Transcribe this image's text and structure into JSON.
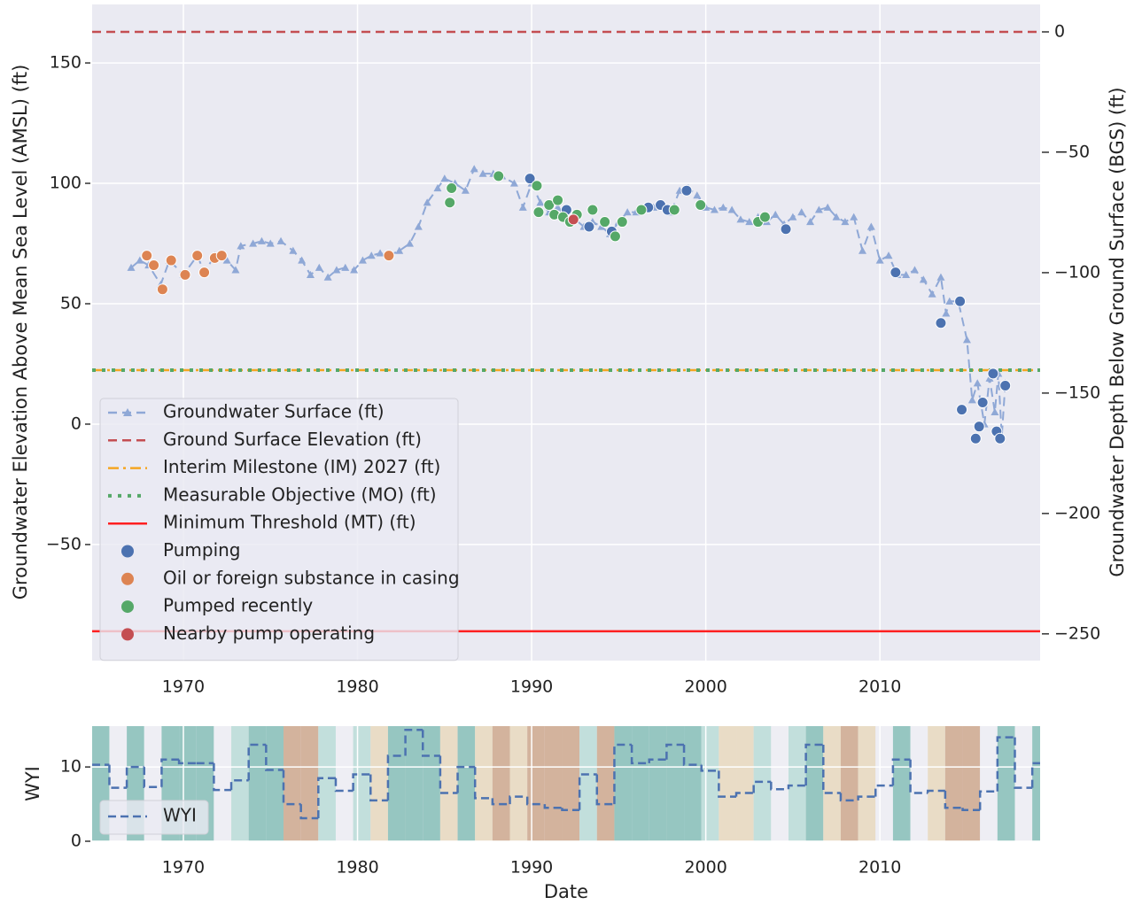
{
  "chart_data": [
    {
      "type": "line",
      "ylabel": "Groundwater Elevation Above Mean Sea Level (AMSL) (ft)",
      "y2label": "Groundwater Depth Below Ground Surface (BGS) (ft)",
      "xlim": [
        1964.76,
        2019.2
      ],
      "xticks": [
        1970,
        1980,
        1990,
        2000,
        2010
      ],
      "ylim": [
        -98.2,
        174.3
      ],
      "yticks": [
        {
          "value": -50,
          "label": "−50"
        },
        0,
        50,
        100,
        150
      ],
      "y2lim": [
        -261.1,
        11.4
      ],
      "y2ticks": [
        {
          "value": -250,
          "label": "−250"
        },
        {
          "value": -200,
          "label": "−200"
        },
        {
          "value": -150,
          "label": "−150"
        },
        {
          "value": -100,
          "label": "−100"
        },
        {
          "value": -50,
          "label": "−50"
        },
        0
      ],
      "grid": true,
      "background": "#eaeaf2",
      "legend": "lower left",
      "series": [
        {
          "type": "line",
          "name": "Groundwater Surface (ft)",
          "color": "#8fa8d6",
          "linestyle": "dashed",
          "marker": "triangle",
          "x": [
            1967.0,
            1967.5,
            1968,
            1968.7,
            1969.2,
            1970,
            1970.8,
            1971.2,
            1971.8,
            1972.5,
            1973,
            1973.3,
            1974,
            1974.5,
            1975,
            1975.6,
            1976.3,
            1976.8,
            1977.3,
            1977.8,
            1978.3,
            1978.8,
            1979.3,
            1979.8,
            1980.3,
            1980.8,
            1981.3,
            1981.8,
            1982.4,
            1983,
            1983.5,
            1984,
            1984.6,
            1985,
            1985.6,
            1986.2,
            1986.7,
            1987.2,
            1987.8,
            1988.3,
            1989,
            1989.5,
            1990,
            1990.5,
            1991,
            1991.5,
            1992,
            1992.5,
            1993,
            1993.5,
            1994,
            1994.5,
            1995,
            1995.5,
            1996,
            1996.5,
            1997,
            1997.5,
            1998,
            1998.5,
            1999,
            1999.5,
            2000,
            2000.5,
            2001,
            2001.5,
            2002,
            2002.5,
            2003,
            2003.5,
            2004,
            2004.5,
            2005,
            2005.5,
            2006,
            2006.5,
            2007,
            2007.5,
            2008,
            2008.5,
            2009,
            2009.5,
            2010,
            2010.5,
            2011,
            2011.5,
            2012,
            2012.5,
            2013,
            2013.5,
            2013.8,
            2014,
            2014.5,
            2015,
            2015.3,
            2015.6,
            2016,
            2016.3,
            2016.6,
            2016.8,
            2017,
            2017.2
          ],
          "values": [
            65,
            68,
            66,
            58,
            68,
            62,
            70,
            63,
            70,
            68,
            64,
            74,
            75,
            76,
            75,
            76,
            72,
            68,
            62,
            65,
            61,
            64,
            65,
            64,
            68,
            70,
            71,
            70,
            72,
            75,
            82,
            92,
            98,
            102,
            100,
            97,
            106,
            104,
            104,
            103,
            100,
            90,
            100,
            92,
            88,
            90,
            86,
            85,
            82,
            84,
            82,
            79,
            84,
            88,
            88,
            90,
            90,
            90,
            88,
            97,
            98,
            95,
            90,
            89,
            90,
            89,
            85,
            84,
            86,
            84,
            87,
            83,
            86,
            88,
            84,
            89,
            90,
            86,
            84,
            86,
            72,
            82,
            68,
            70,
            62,
            62,
            64,
            60,
            54,
            61,
            46,
            51,
            51,
            35,
            10,
            17,
            0,
            19,
            5,
            21,
            -5,
            17
          ]
        },
        {
          "type": "hline",
          "name": "Ground Surface Elevation (ft)",
          "color": "#c44e52",
          "linestyle": "dashed",
          "value": 162.9
        },
        {
          "type": "hline",
          "name": "Interim Milestone (IM) 2027 (ft)",
          "color": "#f5a623",
          "linestyle": "dashdot",
          "value": 22.4
        },
        {
          "type": "hline",
          "name": "Measurable Objective (MO) (ft)",
          "color": "#55a868",
          "linestyle": "dotted",
          "value": 22.4
        },
        {
          "type": "hline",
          "name": "Minimum Threshold (MT) (ft)",
          "color": "#ff2020",
          "linestyle": "solid",
          "value": -86.0
        },
        {
          "type": "scatter",
          "name": "Pumping",
          "color": "#4c72b0",
          "x": [
            1989.9,
            1992,
            1993.3,
            1994.6,
            1996.7,
            1997.4,
            1997.8,
            1998.9,
            2004.6,
            2010.9,
            2013.5,
            2014.6,
            2014.7,
            2015.5,
            2015.7,
            2015.9,
            2016.5,
            2016.7,
            2016.9,
            2017.2
          ],
          "values": [
            102,
            89,
            82,
            80,
            90,
            91,
            89,
            97,
            81,
            63,
            42,
            51,
            6,
            -6,
            -1,
            9,
            21,
            -3,
            -6,
            16
          ]
        },
        {
          "type": "scatter",
          "name": "Oil or foreign substance in casing",
          "color": "#dd8452",
          "x": [
            1967.9,
            1968.3,
            1968.8,
            1969.3,
            1970.1,
            1970.8,
            1971.2,
            1971.8,
            1972.2,
            1981.8
          ],
          "values": [
            70,
            66,
            56,
            68,
            62,
            70,
            63,
            69,
            70,
            70
          ]
        },
        {
          "type": "scatter",
          "name": "Pumped recently",
          "color": "#55a868",
          "x": [
            1985.3,
            1985.4,
            1988.1,
            1990.3,
            1990.4,
            1991,
            1991.3,
            1991.5,
            1991.8,
            1992.2,
            1992.6,
            1993.5,
            1994.2,
            1994.8,
            1995.2,
            1996.3,
            1998.2,
            1999.7,
            2003,
            2003.4
          ],
          "values": [
            92,
            98,
            103,
            99,
            88,
            91,
            87,
            93,
            86,
            84,
            87,
            89,
            84,
            78,
            84,
            89,
            89,
            91,
            84,
            86
          ]
        },
        {
          "type": "scatter",
          "name": "Nearby pump operating",
          "color": "#c44e52",
          "x": [
            1992.4
          ],
          "values": [
            85
          ]
        }
      ]
    },
    {
      "type": "step",
      "ylabel": "WYI",
      "xlabel": "Date",
      "xlim": [
        1964.76,
        2019.2
      ],
      "xticks": [
        1970,
        1980,
        1990,
        2000,
        2010
      ],
      "ylim": [
        0,
        15.5
      ],
      "yticks": [
        0,
        10
      ],
      "grid": true,
      "background": "#eaeaf2",
      "legend": "lower left",
      "x": [
        1965,
        1966,
        1967,
        1968,
        1969,
        1970,
        1971,
        1972,
        1973,
        1974,
        1975,
        1976,
        1977,
        1978,
        1979,
        1980,
        1981,
        1982,
        1983,
        1984,
        1985,
        1986,
        1987,
        1988,
        1989,
        1990,
        1991,
        1992,
        1993,
        1994,
        1995,
        1996,
        1997,
        1998,
        1999,
        2000,
        2001,
        2002,
        2003,
        2004,
        2005,
        2006,
        2007,
        2008,
        2009,
        2010,
        2011,
        2012,
        2013,
        2014,
        2015,
        2016,
        2017,
        2018,
        2019
      ],
      "band_colors": [
        "#96c6c1",
        "#eeeef4",
        "#96c6c1",
        "#eeeef4",
        "#96c6c1",
        "#96c6c1",
        "#96c6c1",
        "#eeeef4",
        "#c2dfdc",
        "#96c6c1",
        "#96c6c1",
        "#d3b39d",
        "#d3b39d",
        "#c2dfdc",
        "#eeeef4",
        "#c2dfdc",
        "#e9dcc6",
        "#96c6c1",
        "#96c6c1",
        "#96c6c1",
        "#e9dcc6",
        "#96c6c1",
        "#e9dcc6",
        "#d3b39d",
        "#e9dcc6",
        "#d3b39d",
        "#d3b39d",
        "#d3b39d",
        "#c2dfdc",
        "#d3b39d",
        "#96c6c1",
        "#96c6c1",
        "#96c6c1",
        "#96c6c1",
        "#96c6c1",
        "#c2dfdc",
        "#e9dcc6",
        "#e9dcc6",
        "#c2dfdc",
        "#eeeef4",
        "#c2dfdc",
        "#96c6c1",
        "#e9dcc6",
        "#d3b39d",
        "#e9dcc6",
        "#eeeef4",
        "#96c6c1",
        "#eeeef4",
        "#e9dcc6",
        "#d3b39d",
        "#d3b39d",
        "#eeeef4",
        "#96c6c1",
        "#eeeef4",
        "#96c6c1"
      ],
      "series": [
        {
          "name": "WYI",
          "color": "#4c72b0",
          "values": [
            10.3,
            7.2,
            10,
            7.3,
            11,
            10.5,
            10.5,
            6.9,
            8.2,
            13,
            9.6,
            5,
            3.1,
            8.5,
            6.8,
            9,
            5.5,
            11.5,
            15,
            11.5,
            6.5,
            10,
            5.8,
            5,
            6,
            5,
            4.5,
            4.2,
            9,
            5,
            13,
            10.5,
            11,
            13,
            10.3,
            9.5,
            6,
            6.5,
            8,
            7,
            7.5,
            13,
            6.5,
            5.5,
            6,
            7.5,
            11,
            6.5,
            6.8,
            4.5,
            4.2,
            6.7,
            14,
            7.2,
            10.5
          ]
        }
      ]
    }
  ]
}
